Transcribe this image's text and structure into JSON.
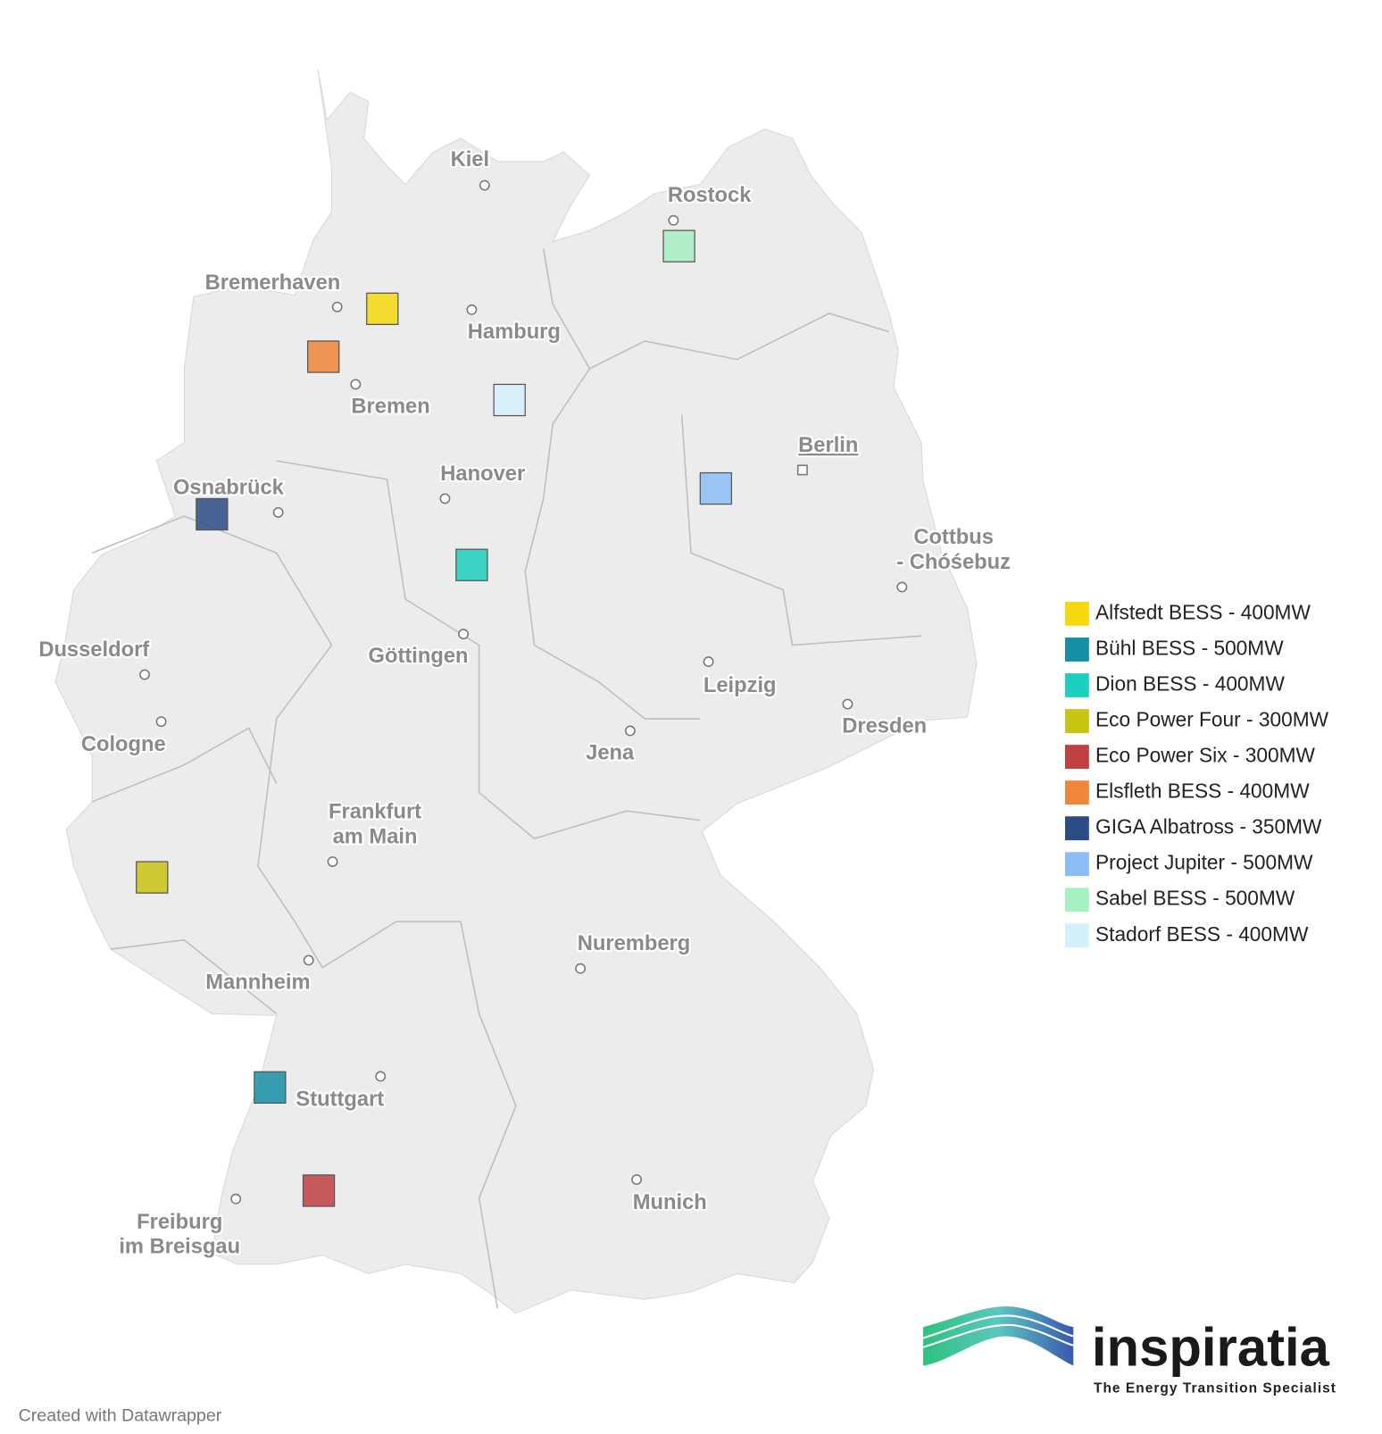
{
  "map": {
    "cities": [
      {
        "lines": [
          "Kiel"
        ]
      },
      {
        "lines": [
          "Rostock"
        ]
      },
      {
        "lines": [
          "Bremerhaven"
        ]
      },
      {
        "lines": [
          "Hamburg"
        ]
      },
      {
        "lines": [
          "Bremen"
        ]
      },
      {
        "lines": [
          "Berlin"
        ]
      },
      {
        "lines": [
          "Hanover"
        ]
      },
      {
        "lines": [
          "Osnabrück"
        ]
      },
      {
        "lines": [
          "Cottbus",
          "- Chóśebuz"
        ]
      },
      {
        "lines": [
          "Dusseldorf"
        ]
      },
      {
        "lines": [
          "Göttingen"
        ]
      },
      {
        "lines": [
          "Leipzig"
        ]
      },
      {
        "lines": [
          "Dresden"
        ]
      },
      {
        "lines": [
          "Cologne"
        ]
      },
      {
        "lines": [
          "Jena"
        ]
      },
      {
        "lines": [
          "Frankfurt",
          "am Main"
        ]
      },
      {
        "lines": [
          "Nuremberg"
        ]
      },
      {
        "lines": [
          "Mannheim"
        ]
      },
      {
        "lines": [
          "Stuttgart"
        ]
      },
      {
        "lines": [
          "Munich"
        ]
      },
      {
        "lines": [
          "Freiburg",
          "im Breisgau"
        ]
      }
    ],
    "legend": [
      {
        "label": "Alfstedt BESS - 400MW",
        "color": "#f5d80f"
      },
      {
        "label": "Bühl BESS - 500MW",
        "color": "#168fa6"
      },
      {
        "label": "Dion BESS - 400MW",
        "color": "#1ccfc0"
      },
      {
        "label": "Eco Power Four - 300MW",
        "color": "#c8c414"
      },
      {
        "label": "Eco Power Six - 300MW",
        "color": "#c0403f"
      },
      {
        "label": "Elsfleth BESS - 400MW",
        "color": "#f0863a"
      },
      {
        "label": "GIGA Albatross - 350MW",
        "color": "#2c4c86"
      },
      {
        "label": "Project Jupiter - 500MW",
        "color": "#8cbdf5"
      },
      {
        "label": "Sabel BESS - 500MW",
        "color": "#a6f0c4"
      },
      {
        "label": "Stadorf BESS - 400MW",
        "color": "#d4f1fb"
      }
    ]
  },
  "logo": {
    "name": "inspiratia",
    "tagline": "The Energy Transition Specialist"
  },
  "footer": "Created with Datawrapper"
}
